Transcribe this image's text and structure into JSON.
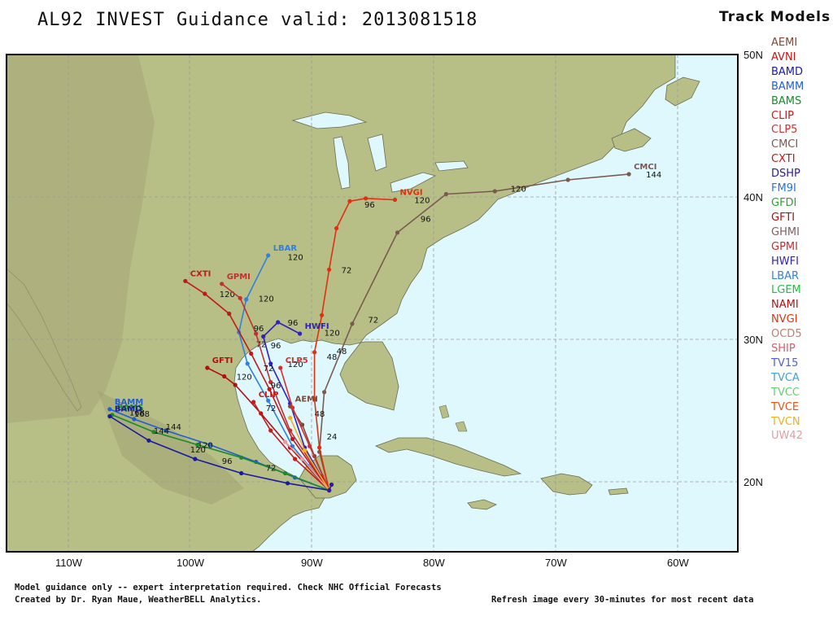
{
  "header": {
    "title": "AL92 INVEST Guidance valid: 2013081518",
    "legend_title": "Track Models"
  },
  "legend": [
    {
      "name": "AEMI",
      "color": "#7a4a3a"
    },
    {
      "name": "AVNI",
      "color": "#cc1111"
    },
    {
      "name": "BAMD",
      "color": "#1a1aa0"
    },
    {
      "name": "BAMM",
      "color": "#1f5fd0"
    },
    {
      "name": "BAMS",
      "color": "#1a8a2a"
    },
    {
      "name": "CLIP",
      "color": "#c81a1a"
    },
    {
      "name": "CLP5",
      "color": "#d43030"
    },
    {
      "name": "CMCI",
      "color": "#7a5a50"
    },
    {
      "name": "CXTI",
      "color": "#c01818"
    },
    {
      "name": "DSHP",
      "color": "#2a1aa0"
    },
    {
      "name": "FM9I",
      "color": "#2a70e0"
    },
    {
      "name": "GFDI",
      "color": "#30a030"
    },
    {
      "name": "GFTI",
      "color": "#b01010"
    },
    {
      "name": "GHMI",
      "color": "#806060"
    },
    {
      "name": "GPMI",
      "color": "#c03030"
    },
    {
      "name": "HWFI",
      "color": "#3020c0"
    },
    {
      "name": "LBAR",
      "color": "#3080e0"
    },
    {
      "name": "LGEM",
      "color": "#20c040"
    },
    {
      "name": "NAMI",
      "color": "#b81010"
    },
    {
      "name": "NVGI",
      "color": "#e03010"
    },
    {
      "name": "OCD5",
      "color": "#c08070"
    },
    {
      "name": "SHIP",
      "color": "#d06070"
    },
    {
      "name": "TV15",
      "color": "#5060d0"
    },
    {
      "name": "TVCA",
      "color": "#40a0e0"
    },
    {
      "name": "TVCC",
      "color": "#60d070"
    },
    {
      "name": "TVCE",
      "color": "#f05010"
    },
    {
      "name": "TVCN",
      "color": "#f0b020"
    },
    {
      "name": "UW42",
      "color": "#e0a0a0"
    }
  ],
  "axes": {
    "lat_labels": [
      "50N",
      "40N",
      "30N",
      "20N"
    ],
    "lon_labels": [
      "110W",
      "100W",
      "90W",
      "80W",
      "70W",
      "60W"
    ]
  },
  "footer": {
    "line1": "Model guidance only -- expert interpretation required.  Check NHC Official Forecasts",
    "line2": "Created by Dr. Ryan Maue, WeatherBELL Analytics.",
    "refresh": "Refresh image every 30-minutes for most recent data"
  },
  "colors": {
    "ocean": "#dff8fd",
    "land": "#b7bf87",
    "border": "#000000"
  },
  "tracks": [
    {
      "model": "CMCI",
      "color": "#7a5a50",
      "label": "CMCI",
      "points": [
        [
          -88.6,
          19.4
        ],
        [
          -89.4,
          22.1
        ],
        [
          -89.0,
          26.3
        ],
        [
          -86.7,
          31.1
        ],
        [
          -83.0,
          37.5
        ],
        [
          -79.0,
          40.2
        ],
        [
          -75.0,
          40.4
        ],
        [
          -69.0,
          41.2
        ],
        [
          -64.0,
          41.6
        ]
      ],
      "hours": [
        {
          "h": "48",
          "lon": -88.2,
          "lat": 29.2
        },
        {
          "h": "72",
          "lon": -85.6,
          "lat": 31.4
        },
        {
          "h": "96",
          "lon": -81.3,
          "lat": 38.5
        },
        {
          "h": "120",
          "lon": -73.9,
          "lat": 40.6
        },
        {
          "h": "144",
          "lon": -62.8,
          "lat": 41.6
        }
      ]
    },
    {
      "model": "NVGI",
      "color": "#e03010",
      "label": "NVGI",
      "points": [
        [
          -88.6,
          19.4
        ],
        [
          -89.4,
          22.4
        ],
        [
          -89.8,
          25.8
        ],
        [
          -89.8,
          29.1
        ],
        [
          -89.2,
          31.7
        ],
        [
          -88.6,
          34.9
        ],
        [
          -88.0,
          37.8
        ],
        [
          -86.9,
          39.7
        ],
        [
          -85.6,
          39.9
        ],
        [
          -83.2,
          39.8
        ]
      ],
      "hours": [
        {
          "h": "24",
          "lon": -89.0,
          "lat": 23.2
        },
        {
          "h": "48",
          "lon": -89.0,
          "lat": 28.8
        },
        {
          "h": "72",
          "lon": -87.8,
          "lat": 34.9
        },
        {
          "h": "96",
          "lon": -85.9,
          "lat": 39.5
        },
        {
          "h": "120",
          "lon": -81.8,
          "lat": 39.8
        }
      ]
    },
    {
      "model": "LBAR",
      "color": "#3080e0",
      "label": "LBAR",
      "points": [
        [
          -88.6,
          19.4
        ],
        [
          -91.6,
          22.5
        ],
        [
          -93.6,
          25.7
        ],
        [
          -95.3,
          28.3
        ],
        [
          -96.0,
          30.5
        ],
        [
          -95.4,
          32.8
        ],
        [
          -93.6,
          35.9
        ]
      ],
      "hours": [
        {
          "h": "72",
          "lon": -94.8,
          "lat": 29.7
        },
        {
          "h": "120",
          "lon": -92.2,
          "lat": 35.8
        }
      ]
    },
    {
      "model": "CXTI",
      "color": "#c01818",
      "label": "CXTI",
      "points": [
        [
          -88.6,
          19.4
        ],
        [
          -91.6,
          23.0
        ],
        [
          -93.5,
          26.5
        ],
        [
          -95.0,
          29.0
        ],
        [
          -96.8,
          31.8
        ],
        [
          -98.8,
          33.2
        ],
        [
          -100.4,
          34.1
        ]
      ],
      "hours": [
        {
          "h": "96",
          "lon": -93.6,
          "lat": 29.6
        },
        {
          "h": "120",
          "lon": -97.8,
          "lat": 33.2
        }
      ]
    },
    {
      "model": "GPMI",
      "color": "#c03030",
      "label": "GPMI",
      "points": [
        [
          -88.6,
          19.4
        ],
        [
          -91.8,
          23.6
        ],
        [
          -93.4,
          27.0
        ],
        [
          -94.6,
          30.4
        ],
        [
          -95.9,
          32.9
        ],
        [
          -97.4,
          33.9
        ]
      ],
      "hours": [
        {
          "h": "96",
          "lon": -95.0,
          "lat": 30.8
        },
        {
          "h": "120",
          "lon": -94.6,
          "lat": 32.9
        }
      ]
    },
    {
      "model": "HWFI",
      "color": "#3020c0",
      "label": "HWFI",
      "points": [
        [
          -88.6,
          19.4
        ],
        [
          -90.6,
          22.4
        ],
        [
          -91.8,
          25.5
        ],
        [
          -93.4,
          28.3
        ],
        [
          -94.0,
          30.2
        ],
        [
          -92.8,
          31.2
        ],
        [
          -91.0,
          30.4
        ]
      ],
      "hours": [
        {
          "h": "96",
          "lon": -92.2,
          "lat": 31.2
        },
        {
          "h": "120",
          "lon": -89.2,
          "lat": 30.5
        }
      ]
    },
    {
      "model": "GFTI",
      "color": "#b01010",
      "label": "GFTI",
      "points": [
        [
          -88.6,
          19.4
        ],
        [
          -91.8,
          22.4
        ],
        [
          -94.2,
          24.8
        ],
        [
          -96.3,
          26.8
        ],
        [
          -97.2,
          27.4
        ],
        [
          -98.6,
          28.0
        ]
      ],
      "hours": [
        {
          "h": "72",
          "lon": -94.2,
          "lat": 28.0
        },
        {
          "h": "96",
          "lon": -93.6,
          "lat": 26.8
        },
        {
          "h": "120",
          "lon": -96.4,
          "lat": 27.4
        }
      ]
    },
    {
      "model": "BAMM",
      "color": "#1f5fd0",
      "label": "BAMM",
      "points": [
        [
          -88.6,
          19.4
        ],
        [
          -91.4,
          20.3
        ],
        [
          -94.6,
          21.4
        ],
        [
          -98.4,
          22.6
        ],
        [
          -102.0,
          23.6
        ],
        [
          -104.6,
          24.4
        ],
        [
          -106.6,
          25.1
        ]
      ],
      "hours": [
        {
          "h": "144",
          "lon": -102.2,
          "lat": 23.9
        },
        {
          "h": "168",
          "lon": -104.8,
          "lat": 24.8
        }
      ]
    },
    {
      "model": "BAMS",
      "color": "#1a8a2a",
      "label": "BAMS",
      "points": [
        [
          -88.6,
          19.4
        ],
        [
          -92.2,
          20.6
        ],
        [
          -95.8,
          21.7
        ],
        [
          -99.4,
          22.6
        ],
        [
          -103.0,
          23.5
        ],
        [
          -106.4,
          24.7
        ]
      ],
      "hours": [
        {
          "h": "120",
          "lon": -99.6,
          "lat": 22.6
        },
        {
          "h": "144",
          "lon": -103.2,
          "lat": 23.6
        },
        {
          "h": "168",
          "lon": -105.2,
          "lat": 24.9
        }
      ]
    },
    {
      "model": "BAMD",
      "color": "#1a1aa0",
      "label": "BAMD",
      "points": [
        [
          -88.6,
          19.4
        ],
        [
          -92.0,
          19.9
        ],
        [
          -95.8,
          20.6
        ],
        [
          -99.6,
          21.6
        ],
        [
          -103.4,
          22.9
        ],
        [
          -106.6,
          24.6
        ]
      ],
      "hours": [
        {
          "h": "72",
          "lon": -94.0,
          "lat": 21.0
        },
        {
          "h": "96",
          "lon": -97.6,
          "lat": 21.5
        },
        {
          "h": "120",
          "lon": -100.2,
          "lat": 22.3
        }
      ]
    },
    {
      "model": "AEMI",
      "color": "#7a4a3a",
      "label": "AEMI",
      "points": [
        [
          -88.6,
          19.4
        ],
        [
          -89.8,
          21.8
        ],
        [
          -90.8,
          24.0
        ],
        [
          -91.8,
          25.3
        ]
      ],
      "hours": [
        {
          "h": "48",
          "lon": -90.0,
          "lat": 24.8
        }
      ]
    },
    {
      "model": "AVNI",
      "color": "#cc1111",
      "label": "AVNI",
      "points": [
        [
          -88.6,
          19.4
        ],
        [
          -89.2,
          20.4
        ]
      ],
      "hours": []
    },
    {
      "model": "CLIP",
      "color": "#c81a1a",
      "label": "CLIP",
      "points": [
        [
          -88.6,
          19.4
        ],
        [
          -91.4,
          21.6
        ],
        [
          -93.4,
          23.6
        ],
        [
          -94.8,
          25.6
        ]
      ],
      "hours": [
        {
          "h": "72",
          "lon": -94.0,
          "lat": 25.2
        }
      ]
    },
    {
      "model": "CLP5",
      "color": "#d43030",
      "label": "CLP5",
      "points": [
        [
          -88.6,
          19.4
        ],
        [
          -90.2,
          22.5
        ],
        [
          -91.6,
          25.2
        ],
        [
          -92.6,
          28.0
        ]
      ],
      "hours": [
        {
          "h": "120",
          "lon": -92.2,
          "lat": 28.3
        }
      ]
    },
    {
      "model": "UW42",
      "color": "#e0a0a0",
      "label": "UW42",
      "points": [
        [
          -88.6,
          19.4
        ],
        [
          -90.8,
          21.6
        ],
        [
          -92.2,
          22.8
        ]
      ],
      "hours": []
    },
    {
      "model": "TVCN",
      "color": "#f0b020",
      "label": "TVCN",
      "points": [
        [
          -88.6,
          19.4
        ],
        [
          -90.6,
          22.2
        ],
        [
          -91.8,
          24.5
        ]
      ],
      "hours": []
    },
    {
      "model": "DSHP",
      "color": "#2a1aa0",
      "label": "DSHP",
      "points": [
        [
          -88.6,
          19.4
        ],
        [
          -88.4,
          19.8
        ]
      ],
      "hours": []
    }
  ]
}
